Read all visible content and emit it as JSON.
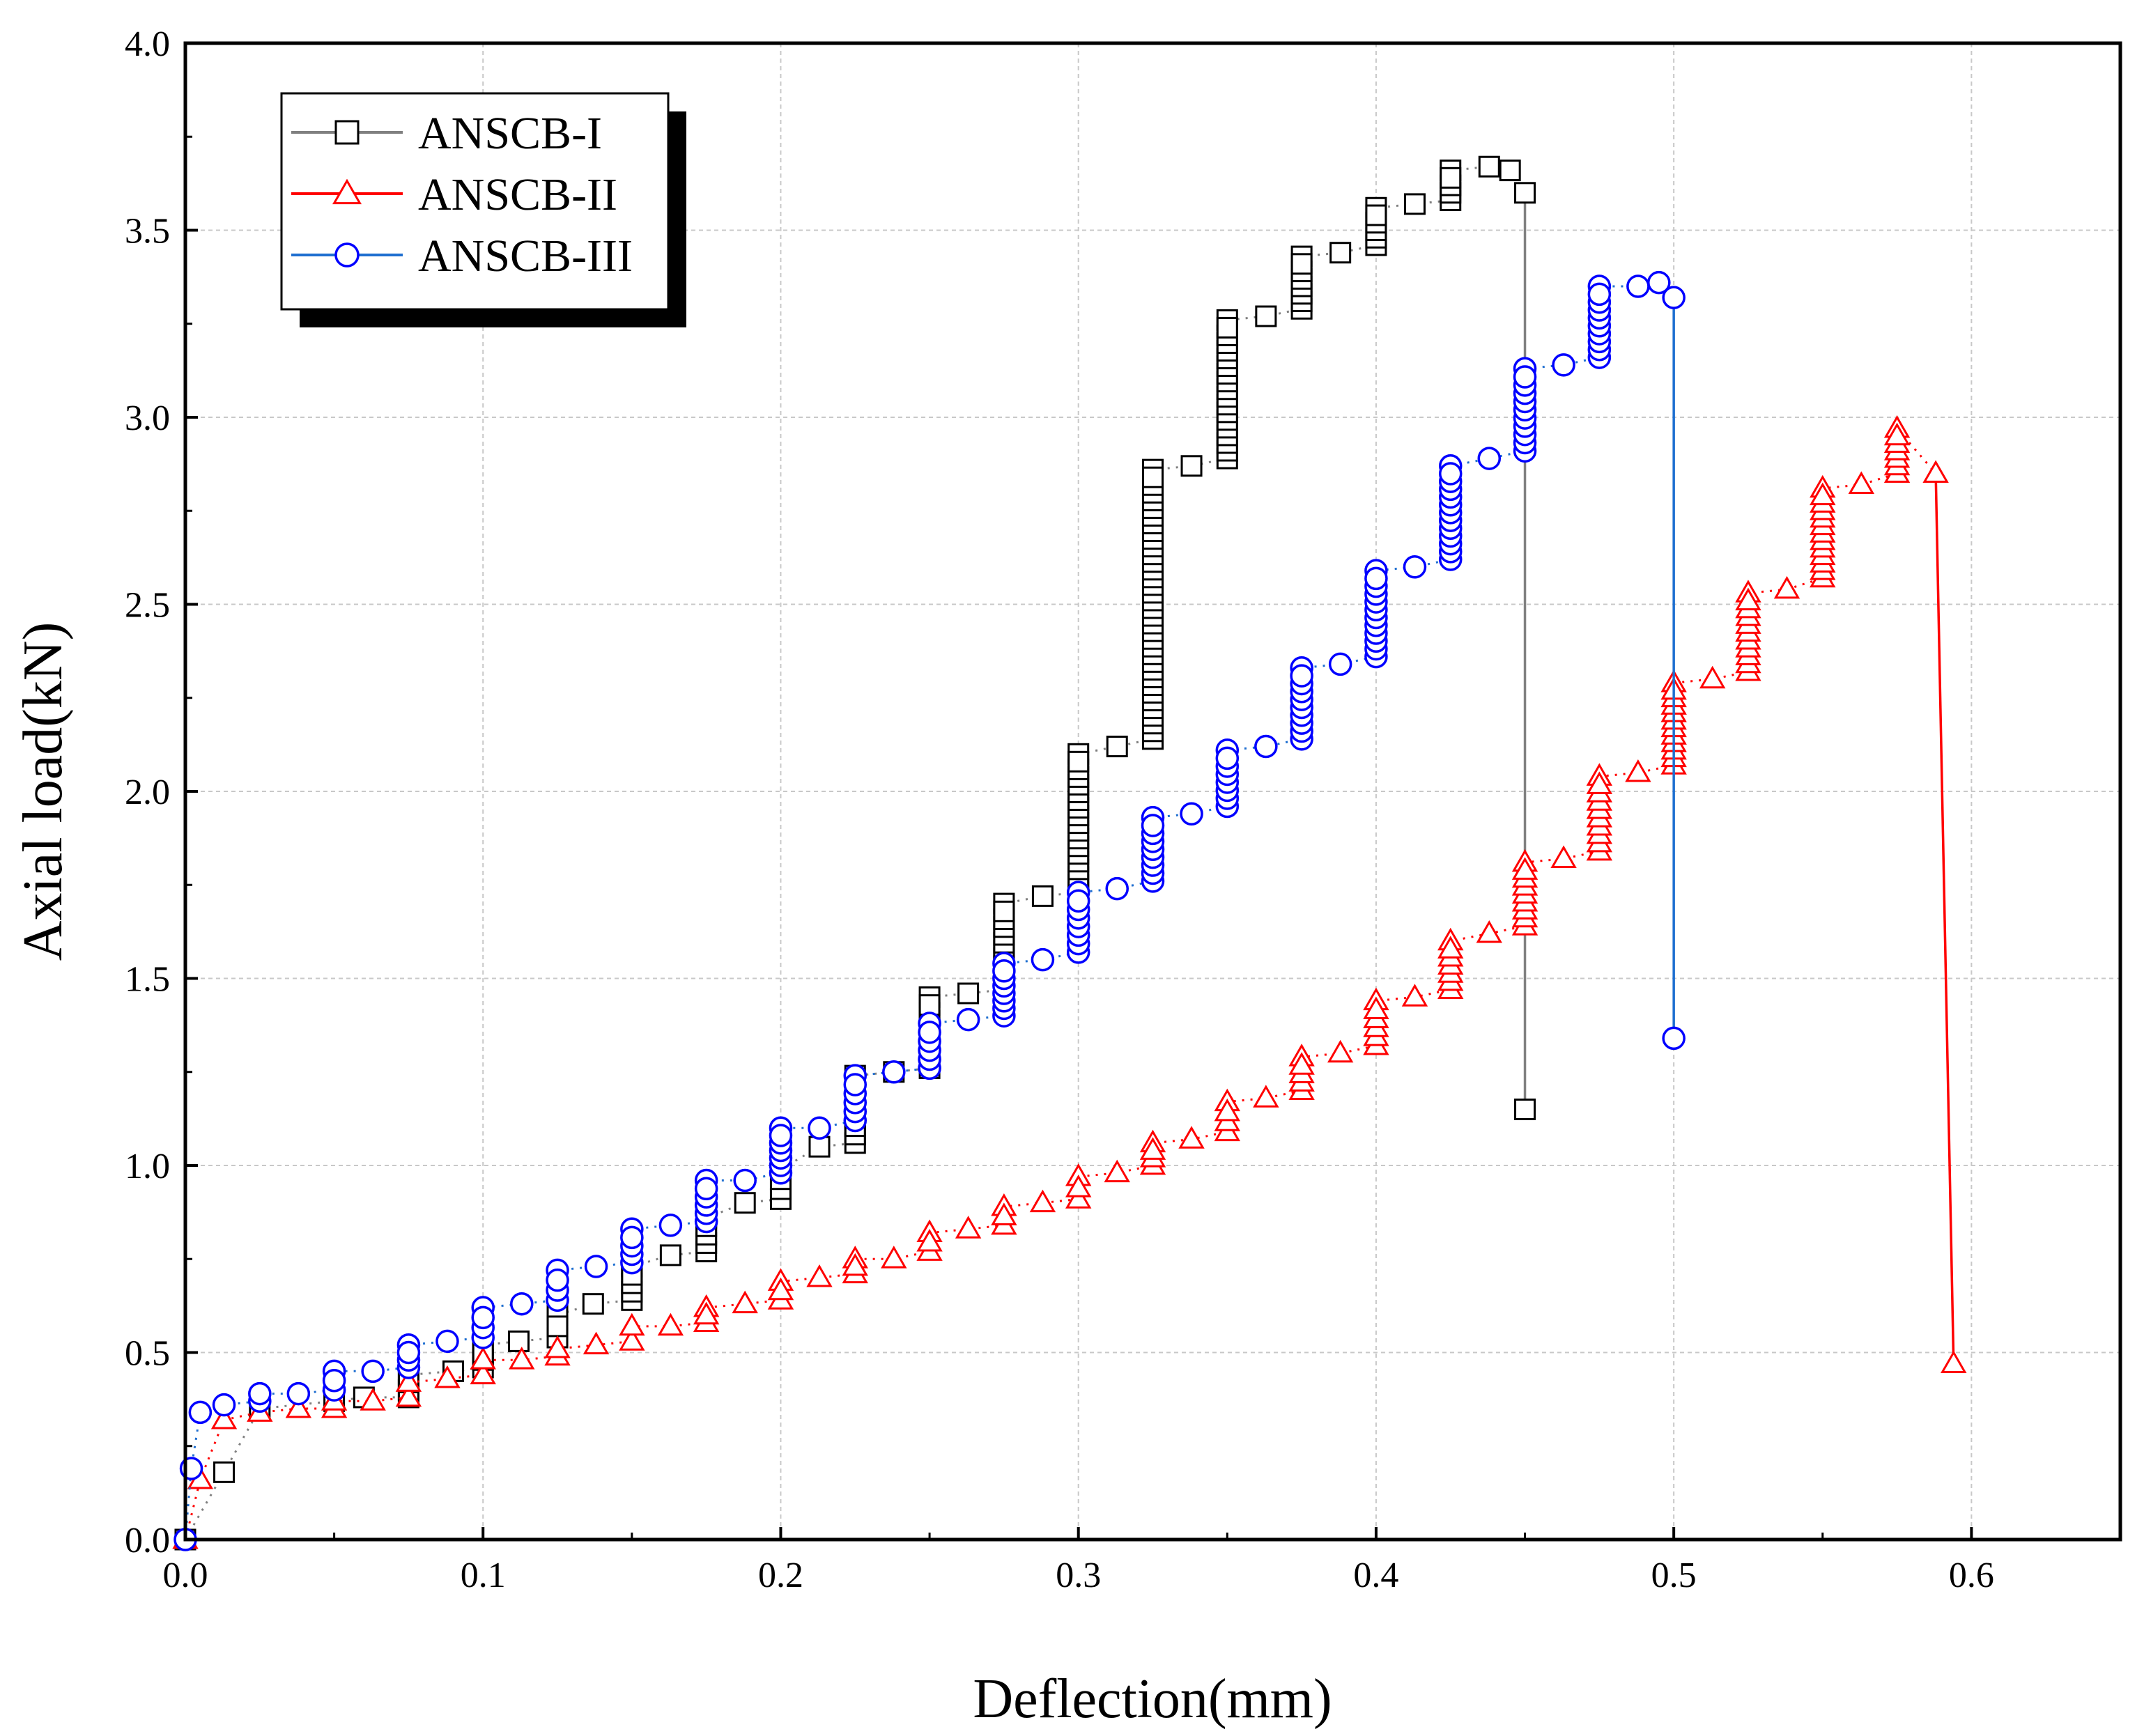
{
  "chart_data": {
    "type": "scatter",
    "title": "",
    "xlabel": "Deflection(mm)",
    "ylabel": "Axial load(kN)",
    "xlim": [
      0.0,
      0.65
    ],
    "ylim": [
      0.0,
      4.0
    ],
    "x_ticks": [
      "0.0",
      "0.1",
      "0.2",
      "0.3",
      "0.4",
      "0.5",
      "0.6"
    ],
    "x_tick_values": [
      0.0,
      0.1,
      0.2,
      0.3,
      0.4,
      0.5,
      0.6
    ],
    "y_ticks": [
      "0.0",
      "0.5",
      "1.0",
      "1.5",
      "2.0",
      "2.5",
      "3.0",
      "3.5",
      "4.0"
    ],
    "y_tick_values": [
      0.0,
      0.5,
      1.0,
      1.5,
      2.0,
      2.5,
      3.0,
      3.5,
      4.0
    ],
    "grid": true,
    "legend_position": "top-left",
    "series": [
      {
        "name": "ANSCB-I",
        "marker": "square",
        "marker_color": "#000000",
        "line_color": "#808080",
        "points": [
          [
            0.0,
            0.0
          ],
          [
            0.013,
            0.18
          ],
          [
            0.025,
            0.35
          ],
          [
            0.05,
            0.37
          ],
          [
            0.06,
            0.38
          ],
          [
            0.075,
            0.38
          ],
          [
            0.075,
            0.44
          ],
          [
            0.09,
            0.45
          ],
          [
            0.1,
            0.46
          ],
          [
            0.1,
            0.52
          ],
          [
            0.112,
            0.53
          ],
          [
            0.125,
            0.54
          ],
          [
            0.125,
            0.6
          ],
          [
            0.137,
            0.63
          ],
          [
            0.15,
            0.64
          ],
          [
            0.15,
            0.73
          ],
          [
            0.163,
            0.76
          ],
          [
            0.175,
            0.77
          ],
          [
            0.175,
            0.86
          ],
          [
            0.188,
            0.9
          ],
          [
            0.2,
            0.91
          ],
          [
            0.2,
            0.99
          ],
          [
            0.213,
            1.05
          ],
          [
            0.225,
            1.06
          ],
          [
            0.225,
            1.24
          ],
          [
            0.238,
            1.25
          ],
          [
            0.25,
            1.26
          ],
          [
            0.25,
            1.45
          ],
          [
            0.263,
            1.46
          ],
          [
            0.275,
            1.47
          ],
          [
            0.275,
            1.7
          ],
          [
            0.288,
            1.72
          ],
          [
            0.3,
            1.73
          ],
          [
            0.3,
            2.1
          ],
          [
            0.313,
            2.12
          ],
          [
            0.325,
            2.14
          ],
          [
            0.325,
            2.86
          ],
          [
            0.338,
            2.87
          ],
          [
            0.35,
            2.89
          ],
          [
            0.35,
            3.26
          ],
          [
            0.363,
            3.27
          ],
          [
            0.375,
            3.29
          ],
          [
            0.375,
            3.43
          ],
          [
            0.388,
            3.44
          ],
          [
            0.4,
            3.46
          ],
          [
            0.4,
            3.56
          ],
          [
            0.413,
            3.57
          ],
          [
            0.425,
            3.58
          ],
          [
            0.425,
            3.66
          ],
          [
            0.438,
            3.67
          ],
          [
            0.445,
            3.66
          ],
          [
            0.45,
            3.6
          ],
          [
            0.45,
            1.15
          ]
        ]
      },
      {
        "name": "ANSCB-II",
        "marker": "triangle",
        "marker_color": "#ff0000",
        "line_color": "#ff0000",
        "points": [
          [
            0.0,
            0.0
          ],
          [
            0.005,
            0.16
          ],
          [
            0.013,
            0.32
          ],
          [
            0.025,
            0.34
          ],
          [
            0.038,
            0.35
          ],
          [
            0.05,
            0.35
          ],
          [
            0.05,
            0.37
          ],
          [
            0.063,
            0.37
          ],
          [
            0.075,
            0.38
          ],
          [
            0.075,
            0.42
          ],
          [
            0.088,
            0.43
          ],
          [
            0.1,
            0.44
          ],
          [
            0.1,
            0.48
          ],
          [
            0.113,
            0.48
          ],
          [
            0.125,
            0.49
          ],
          [
            0.125,
            0.51
          ],
          [
            0.138,
            0.52
          ],
          [
            0.15,
            0.53
          ],
          [
            0.15,
            0.57
          ],
          [
            0.163,
            0.57
          ],
          [
            0.175,
            0.58
          ],
          [
            0.175,
            0.62
          ],
          [
            0.188,
            0.63
          ],
          [
            0.2,
            0.64
          ],
          [
            0.2,
            0.69
          ],
          [
            0.213,
            0.7
          ],
          [
            0.225,
            0.71
          ],
          [
            0.225,
            0.75
          ],
          [
            0.238,
            0.75
          ],
          [
            0.25,
            0.77
          ],
          [
            0.25,
            0.82
          ],
          [
            0.263,
            0.83
          ],
          [
            0.275,
            0.84
          ],
          [
            0.275,
            0.89
          ],
          [
            0.288,
            0.9
          ],
          [
            0.3,
            0.91
          ],
          [
            0.3,
            0.97
          ],
          [
            0.313,
            0.98
          ],
          [
            0.325,
            1.0
          ],
          [
            0.325,
            1.06
          ],
          [
            0.338,
            1.07
          ],
          [
            0.35,
            1.09
          ],
          [
            0.35,
            1.17
          ],
          [
            0.363,
            1.18
          ],
          [
            0.375,
            1.2
          ],
          [
            0.375,
            1.29
          ],
          [
            0.388,
            1.3
          ],
          [
            0.4,
            1.32
          ],
          [
            0.4,
            1.44
          ],
          [
            0.413,
            1.45
          ],
          [
            0.425,
            1.47
          ],
          [
            0.425,
            1.6
          ],
          [
            0.438,
            1.62
          ],
          [
            0.45,
            1.64
          ],
          [
            0.45,
            1.81
          ],
          [
            0.463,
            1.82
          ],
          [
            0.475,
            1.84
          ],
          [
            0.475,
            2.04
          ],
          [
            0.488,
            2.05
          ],
          [
            0.5,
            2.07
          ],
          [
            0.5,
            2.29
          ],
          [
            0.513,
            2.3
          ],
          [
            0.525,
            2.32
          ],
          [
            0.525,
            2.53
          ],
          [
            0.538,
            2.54
          ],
          [
            0.55,
            2.57
          ],
          [
            0.55,
            2.81
          ],
          [
            0.563,
            2.82
          ],
          [
            0.575,
            2.85
          ],
          [
            0.575,
            2.97
          ],
          [
            0.588,
            2.85
          ],
          [
            0.594,
            0.47
          ]
        ]
      },
      {
        "name": "ANSCB-III",
        "marker": "circle",
        "marker_color": "#0000ff",
        "line_color": "#1f6fd0",
        "points": [
          [
            0.0,
            0.0
          ],
          [
            0.002,
            0.19
          ],
          [
            0.005,
            0.34
          ],
          [
            0.013,
            0.36
          ],
          [
            0.025,
            0.37
          ],
          [
            0.025,
            0.39
          ],
          [
            0.038,
            0.39
          ],
          [
            0.05,
            0.4
          ],
          [
            0.05,
            0.45
          ],
          [
            0.063,
            0.45
          ],
          [
            0.075,
            0.46
          ],
          [
            0.075,
            0.52
          ],
          [
            0.088,
            0.53
          ],
          [
            0.1,
            0.54
          ],
          [
            0.1,
            0.62
          ],
          [
            0.113,
            0.63
          ],
          [
            0.125,
            0.64
          ],
          [
            0.125,
            0.72
          ],
          [
            0.138,
            0.73
          ],
          [
            0.15,
            0.74
          ],
          [
            0.15,
            0.83
          ],
          [
            0.163,
            0.84
          ],
          [
            0.175,
            0.85
          ],
          [
            0.175,
            0.96
          ],
          [
            0.188,
            0.96
          ],
          [
            0.2,
            0.98
          ],
          [
            0.2,
            1.1
          ],
          [
            0.213,
            1.1
          ],
          [
            0.225,
            1.12
          ],
          [
            0.225,
            1.24
          ],
          [
            0.238,
            1.25
          ],
          [
            0.25,
            1.26
          ],
          [
            0.25,
            1.38
          ],
          [
            0.263,
            1.39
          ],
          [
            0.275,
            1.4
          ],
          [
            0.275,
            1.54
          ],
          [
            0.288,
            1.55
          ],
          [
            0.3,
            1.57
          ],
          [
            0.3,
            1.73
          ],
          [
            0.313,
            1.74
          ],
          [
            0.325,
            1.76
          ],
          [
            0.325,
            1.93
          ],
          [
            0.338,
            1.94
          ],
          [
            0.35,
            1.96
          ],
          [
            0.35,
            2.11
          ],
          [
            0.363,
            2.12
          ],
          [
            0.375,
            2.14
          ],
          [
            0.375,
            2.33
          ],
          [
            0.388,
            2.34
          ],
          [
            0.4,
            2.36
          ],
          [
            0.4,
            2.59
          ],
          [
            0.413,
            2.6
          ],
          [
            0.425,
            2.62
          ],
          [
            0.425,
            2.87
          ],
          [
            0.438,
            2.89
          ],
          [
            0.45,
            2.91
          ],
          [
            0.45,
            3.13
          ],
          [
            0.463,
            3.14
          ],
          [
            0.475,
            3.16
          ],
          [
            0.475,
            3.35
          ],
          [
            0.488,
            3.35
          ],
          [
            0.495,
            3.36
          ],
          [
            0.5,
            3.32
          ],
          [
            0.5,
            1.34
          ]
        ]
      }
    ]
  }
}
